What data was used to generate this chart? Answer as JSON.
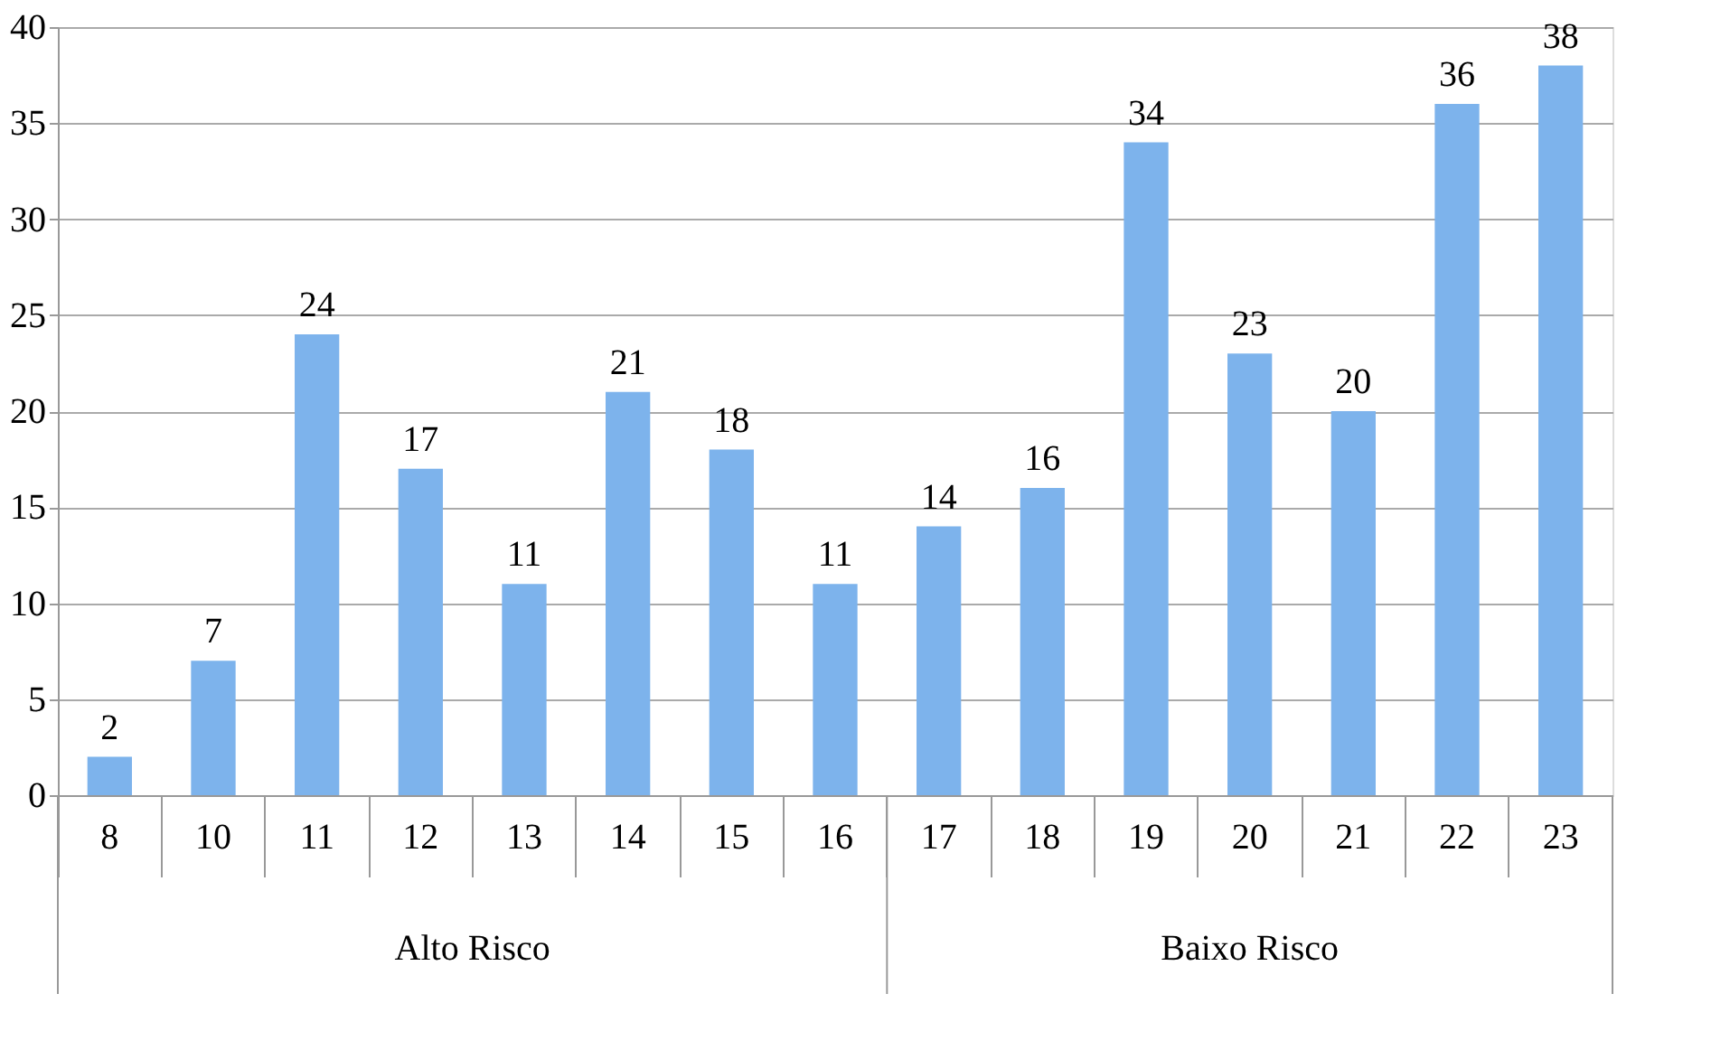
{
  "chart_data": {
    "type": "bar",
    "categories": [
      "8",
      "10",
      "11",
      "12",
      "13",
      "14",
      "15",
      "16",
      "17",
      "18",
      "19",
      "20",
      "21",
      "22",
      "23"
    ],
    "values": [
      2,
      7,
      24,
      17,
      11,
      21,
      18,
      11,
      14,
      16,
      34,
      23,
      20,
      36,
      38
    ],
    "color": "#7db3ec",
    "ylim": [
      0,
      40
    ],
    "yticks": [
      0,
      5,
      10,
      15,
      20,
      25,
      30,
      35,
      40
    ],
    "grid": "y",
    "data_labels": true,
    "annotations": [
      "Alto Risco",
      "Baixo Risco"
    ]
  }
}
